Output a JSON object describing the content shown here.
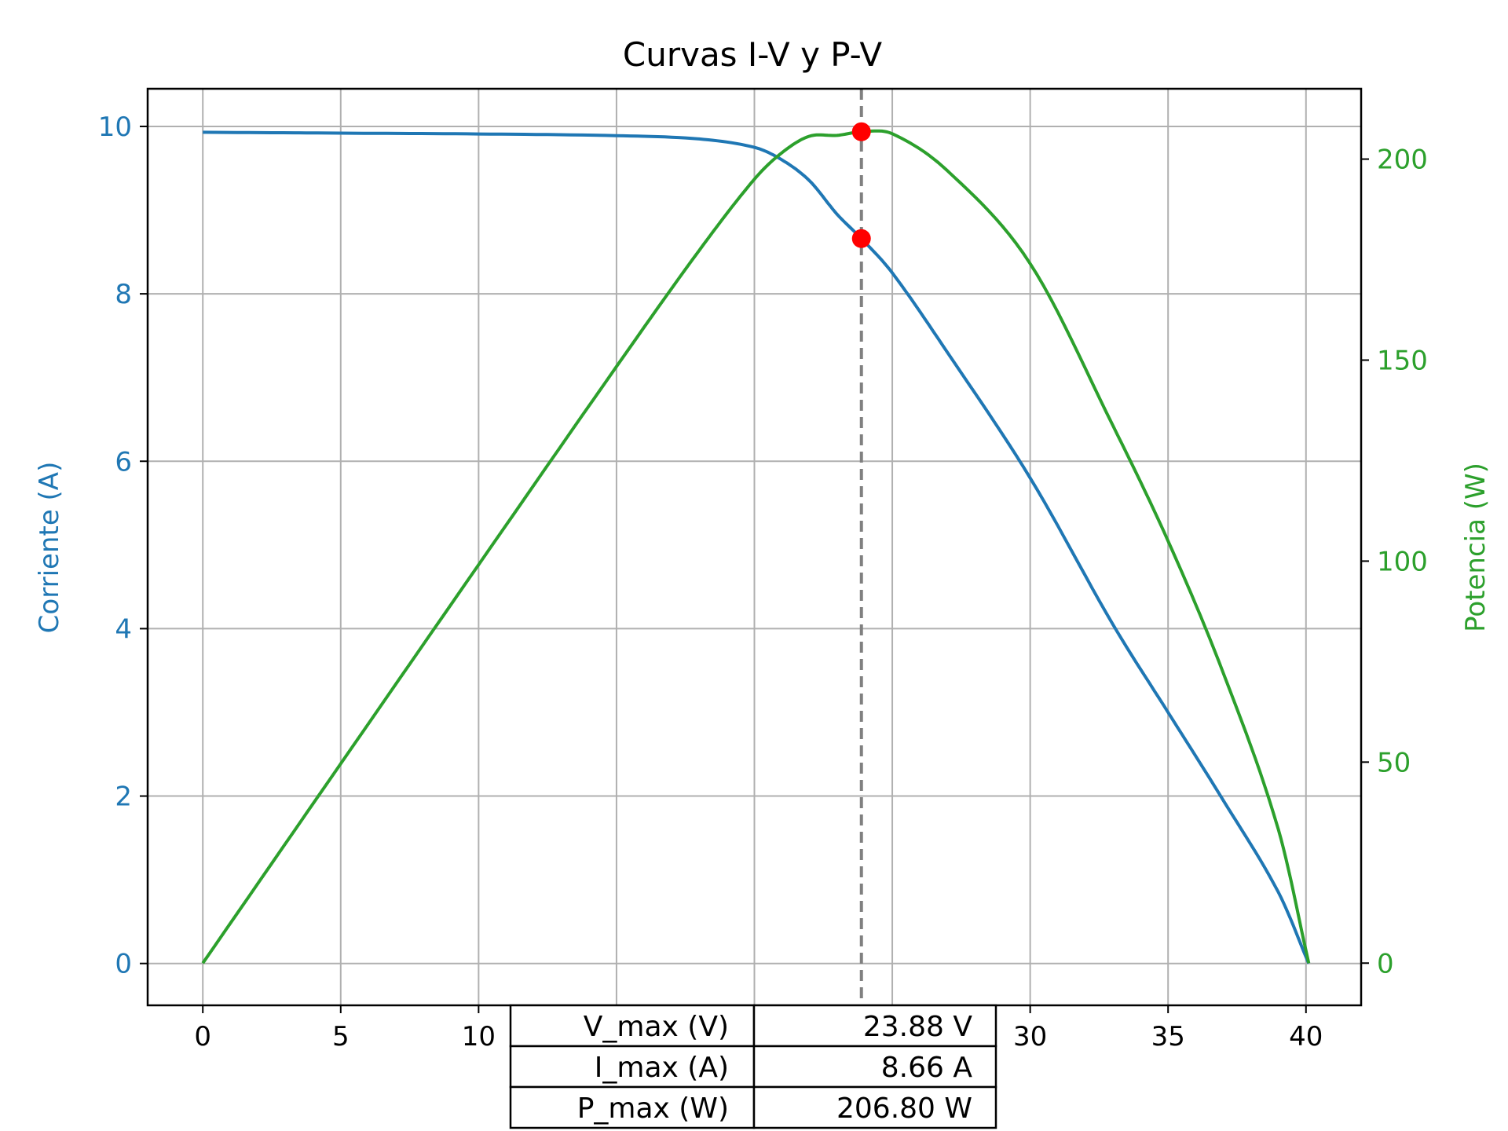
{
  "chart_data": {
    "type": "line",
    "title": "Curvas I-V y P-V",
    "xlim": [
      -2.0,
      42.0
    ],
    "x_ticks": [
      0,
      5,
      10,
      15,
      20,
      25,
      30,
      35,
      40
    ],
    "y_left": {
      "label": "Corriente (A)",
      "lim": [
        -0.5,
        10.45
      ],
      "ticks": [
        0,
        2,
        4,
        6,
        8,
        10
      ],
      "color": "#1f77b4"
    },
    "y_right": {
      "label": "Potencia (W)",
      "lim": [
        -10.5,
        217.5
      ],
      "ticks": [
        0,
        50,
        100,
        150,
        200
      ],
      "color": "#2ca02c"
    },
    "grid": true,
    "series": [
      {
        "axis": "left",
        "color": "#1f77b4",
        "x": [
          0,
          5,
          10,
          15,
          18,
          20,
          21,
          22,
          23,
          23.88,
          25,
          27,
          30,
          33,
          35,
          37,
          39,
          40.1
        ],
        "values": [
          9.93,
          9.92,
          9.91,
          9.89,
          9.85,
          9.75,
          9.6,
          9.35,
          8.95,
          8.66,
          8.25,
          7.3,
          5.8,
          4.05,
          3.0,
          1.95,
          0.85,
          0.0
        ]
      },
      {
        "axis": "right",
        "color": "#2ca02c",
        "x": [
          0,
          5,
          10,
          15,
          18,
          20,
          21,
          22,
          23,
          23.88,
          25,
          27,
          30,
          33,
          35,
          37,
          39,
          40.1
        ],
        "values": [
          0,
          49.6,
          99.1,
          148.4,
          177.3,
          195.0,
          201.6,
          205.7,
          205.9,
          206.8,
          206.3,
          197.1,
          174.0,
          133.7,
          105.0,
          72.2,
          33.2,
          0.0
        ]
      }
    ],
    "mpp": {
      "v": 23.88,
      "i": 8.66,
      "p": 206.8
    },
    "mpp_line": {
      "x": 23.88,
      "color": "#808080",
      "style": "dashed"
    },
    "marker_color": "#ff0000",
    "table": [
      {
        "label": "V_max (V)",
        "value": "23.88 V"
      },
      {
        "label": "I_max (A)",
        "value": "8.66 A"
      },
      {
        "label": "P_max (W)",
        "value": "206.80 W"
      }
    ]
  }
}
